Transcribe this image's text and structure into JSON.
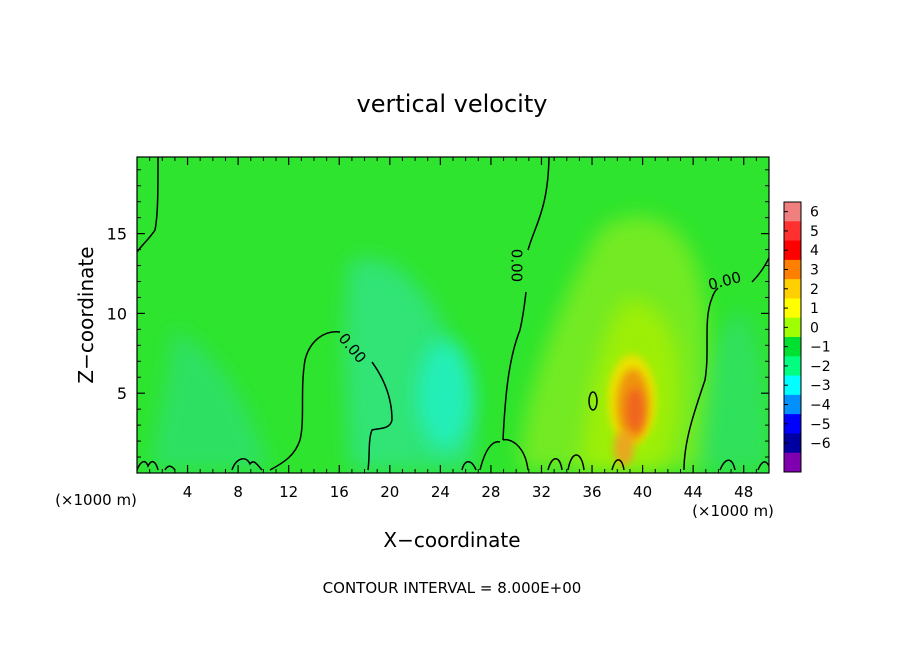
{
  "chart_data": {
    "type": "heatmap",
    "title": "vertical velocity",
    "xlabel": "X−coordinate",
    "ylabel": "Z−coordinate",
    "x_unit_left": "(×1000 m)",
    "x_unit_right": "(×1000 m)",
    "footer": "CONTOUR INTERVAL = 8.000E+00",
    "xlim": [
      0,
      50
    ],
    "ylim": [
      0,
      19.8
    ],
    "x_ticks": [
      4,
      8,
      12,
      16,
      20,
      24,
      28,
      32,
      36,
      40,
      44,
      48
    ],
    "x_tick_labels": [
      "4",
      "8",
      "12",
      "16",
      "20",
      "24",
      "28",
      "32",
      "36",
      "40",
      "44",
      "48"
    ],
    "y_ticks": [
      5,
      10,
      15
    ],
    "y_tick_labels": [
      "5",
      "10",
      "15"
    ],
    "colorbar": {
      "levels": [
        6,
        5,
        4,
        3,
        2,
        1,
        0,
        -1,
        -2,
        -3,
        -4,
        -5,
        -6
      ],
      "labels": [
        "6",
        "5",
        "4",
        "3",
        "2",
        "1",
        "0",
        "−1",
        "−2",
        "−3",
        "−4",
        "−5",
        "−6"
      ],
      "colors": [
        "#f08080",
        "#ff3030",
        "#ff0000",
        "#ff8000",
        "#ffd000",
        "#ffff00",
        "#a0ff00",
        "#00e030",
        "#00ff80",
        "#00ffff",
        "#0090ff",
        "#0000ff",
        "#0000a0",
        "#8000b0"
      ]
    },
    "background_value": 0,
    "background_color": "#2ee42e",
    "features": [
      {
        "name": "updraft core",
        "x": 39.5,
        "z": 4.5,
        "value": 4
      },
      {
        "name": "updraft plume",
        "x": 40,
        "z": 10,
        "value": 1
      },
      {
        "name": "downdraft",
        "x": 24,
        "z": 5,
        "value": -2
      }
    ],
    "contour_labels": [
      {
        "text": "0.00",
        "x": 17,
        "z": 7.8,
        "angle": 50
      },
      {
        "text": "0.00",
        "x": 30,
        "z": 13,
        "angle": 90
      },
      {
        "text": "0.00",
        "x": 46.5,
        "z": 12,
        "angle": -15
      }
    ]
  }
}
